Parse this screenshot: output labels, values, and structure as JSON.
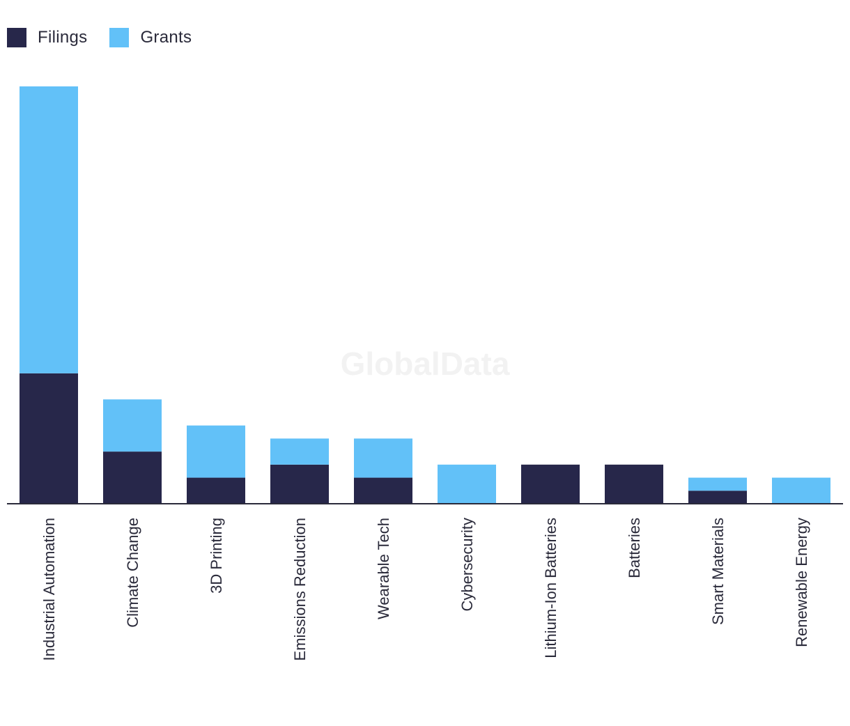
{
  "chart_data": {
    "type": "bar",
    "stacked": true,
    "categories": [
      "Industrial Automation",
      "Climate Change",
      "3D Printing",
      "Emissions Reduction",
      "Wearable Tech",
      "Cybersecurity",
      "Lithium-Ion Batteries",
      "Batteries",
      "Smart Materials",
      "Renewable Energy"
    ],
    "series": [
      {
        "name": "Filings",
        "color": "#27274a",
        "values": [
          10,
          4,
          2,
          3,
          2,
          0,
          3,
          3,
          1,
          0
        ]
      },
      {
        "name": "Grants",
        "color": "#62c1f8",
        "values": [
          22,
          4,
          4,
          2,
          3,
          3,
          0,
          0,
          1,
          2
        ]
      }
    ],
    "ylim": [
      0,
      32
    ],
    "legend_position": "top-left",
    "grid": false,
    "watermark": "GlobalData"
  }
}
